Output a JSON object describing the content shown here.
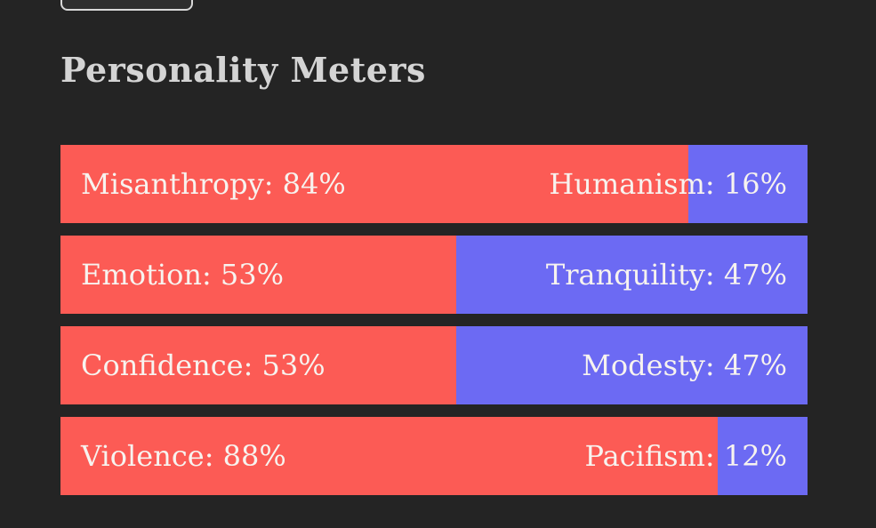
{
  "page": {
    "title": "Personality Meters"
  },
  "top_button": {
    "note": "button partially cut off at top edge, no visible label",
    "border_color": "#d8d8d8",
    "fill_color": "#2e2e2e"
  },
  "colors": {
    "background": "#242424",
    "meter_left_red": "#fc5b55",
    "meter_right_blue": "#6c6af3",
    "title_text": "#d4d4d4",
    "meter_text": "#f7f3ef"
  },
  "meters": [
    {
      "left_trait": "Misanthropy",
      "left_value": 84,
      "left_text": "Misanthropy: 84%",
      "right_trait": "Humanism",
      "right_value": 16,
      "right_text": "Humanism: 16%"
    },
    {
      "left_trait": "Emotion",
      "left_value": 53,
      "left_text": "Emotion: 53%",
      "right_trait": "Tranquility",
      "right_value": 47,
      "right_text": "Tranquility: 47%"
    },
    {
      "left_trait": "Confidence",
      "left_value": 53,
      "left_text": "Confidence: 53%",
      "right_trait": "Modesty",
      "right_value": 47,
      "right_text": "Modesty: 47%"
    },
    {
      "left_trait": "Violence",
      "left_value": 88,
      "left_text": "Violence: 88%",
      "right_trait": "Pacifism",
      "right_value": 12,
      "right_text": "Pacifism: 12%"
    }
  ]
}
